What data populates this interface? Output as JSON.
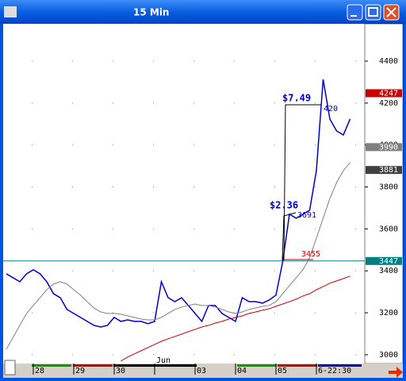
{
  "window_title": "15 Min",
  "chart_data": {
    "type": "line",
    "categories": [
      null,
      null,
      null,
      null,
      "28",
      null,
      null,
      null,
      null,
      null,
      "29",
      null,
      null,
      null,
      null,
      null,
      "30",
      null,
      null,
      null,
      null,
      null,
      "Jun",
      null,
      null,
      null,
      null,
      null,
      "03",
      null,
      null,
      null,
      null,
      null,
      "04",
      null,
      null,
      null,
      null,
      null,
      "05",
      null,
      null,
      null,
      null,
      null,
      "6-22:30",
      null,
      null,
      null,
      null,
      null
    ],
    "series": [
      {
        "color": "#0000cc",
        "values": [
          3386,
          3367,
          3348,
          3386,
          3405,
          3386,
          3348,
          3291,
          3272,
          3216,
          3197,
          3178,
          3159,
          3140,
          3132,
          3140,
          3178,
          3159,
          3166,
          3159,
          3159,
          3148,
          3159,
          3348,
          3272,
          3253,
          3272,
          3235,
          3197,
          3159,
          3235,
          3235,
          3197,
          3178,
          3159,
          3272,
          3253,
          3253,
          3246,
          3261,
          3284,
          3443,
          3670,
          3651,
          3670,
          3689,
          3878,
          4313,
          4124,
          4067,
          4048,
          4124
        ]
      },
      {
        "color": "#808080",
        "values": [
          3026,
          3083,
          3140,
          3197,
          3235,
          3272,
          3310,
          3337,
          3348,
          3337,
          3310,
          3284,
          3253,
          3223,
          3204,
          3197,
          3197,
          3193,
          3185,
          3178,
          3170,
          3166,
          3166,
          3178,
          3197,
          3216,
          3227,
          3235,
          3242,
          3235,
          3235,
          3227,
          3216,
          3204,
          3197,
          3204,
          3216,
          3223,
          3231,
          3235,
          3253,
          3291,
          3329,
          3367,
          3405,
          3462,
          3556,
          3651,
          3745,
          3821,
          3878,
          3916
        ]
      },
      {
        "color": "#cc0000",
        "values": [
          null,
          null,
          null,
          null,
          null,
          null,
          null,
          null,
          null,
          null,
          null,
          null,
          null,
          null,
          null,
          null,
          null,
          2970,
          2989,
          3004,
          3019,
          3034,
          3049,
          3064,
          3076,
          3087,
          3098,
          3110,
          3121,
          3132,
          3140,
          3151,
          3159,
          3170,
          3178,
          3185,
          3197,
          3204,
          3212,
          3219,
          3231,
          3242,
          3253,
          3265,
          3280,
          3291,
          3310,
          3325,
          3341,
          3352,
          3363,
          3375
        ]
      }
    ],
    "ylim": [
      2958,
      4578
    ],
    "yticks": [
      3000,
      3200,
      3400,
      3600,
      3800,
      4000,
      4200,
      4400
    ],
    "markers": [
      {
        "value": 4247,
        "color": "#cc0000"
      },
      {
        "value": 3990,
        "color": "#808080"
      },
      {
        "value": 3881,
        "color": "#404040"
      },
      {
        "value": 3447,
        "color": "#008080",
        "line": true
      }
    ],
    "annotations": [
      "$7.49",
      "420",
      "$2.36",
      "3691",
      "3455"
    ]
  }
}
